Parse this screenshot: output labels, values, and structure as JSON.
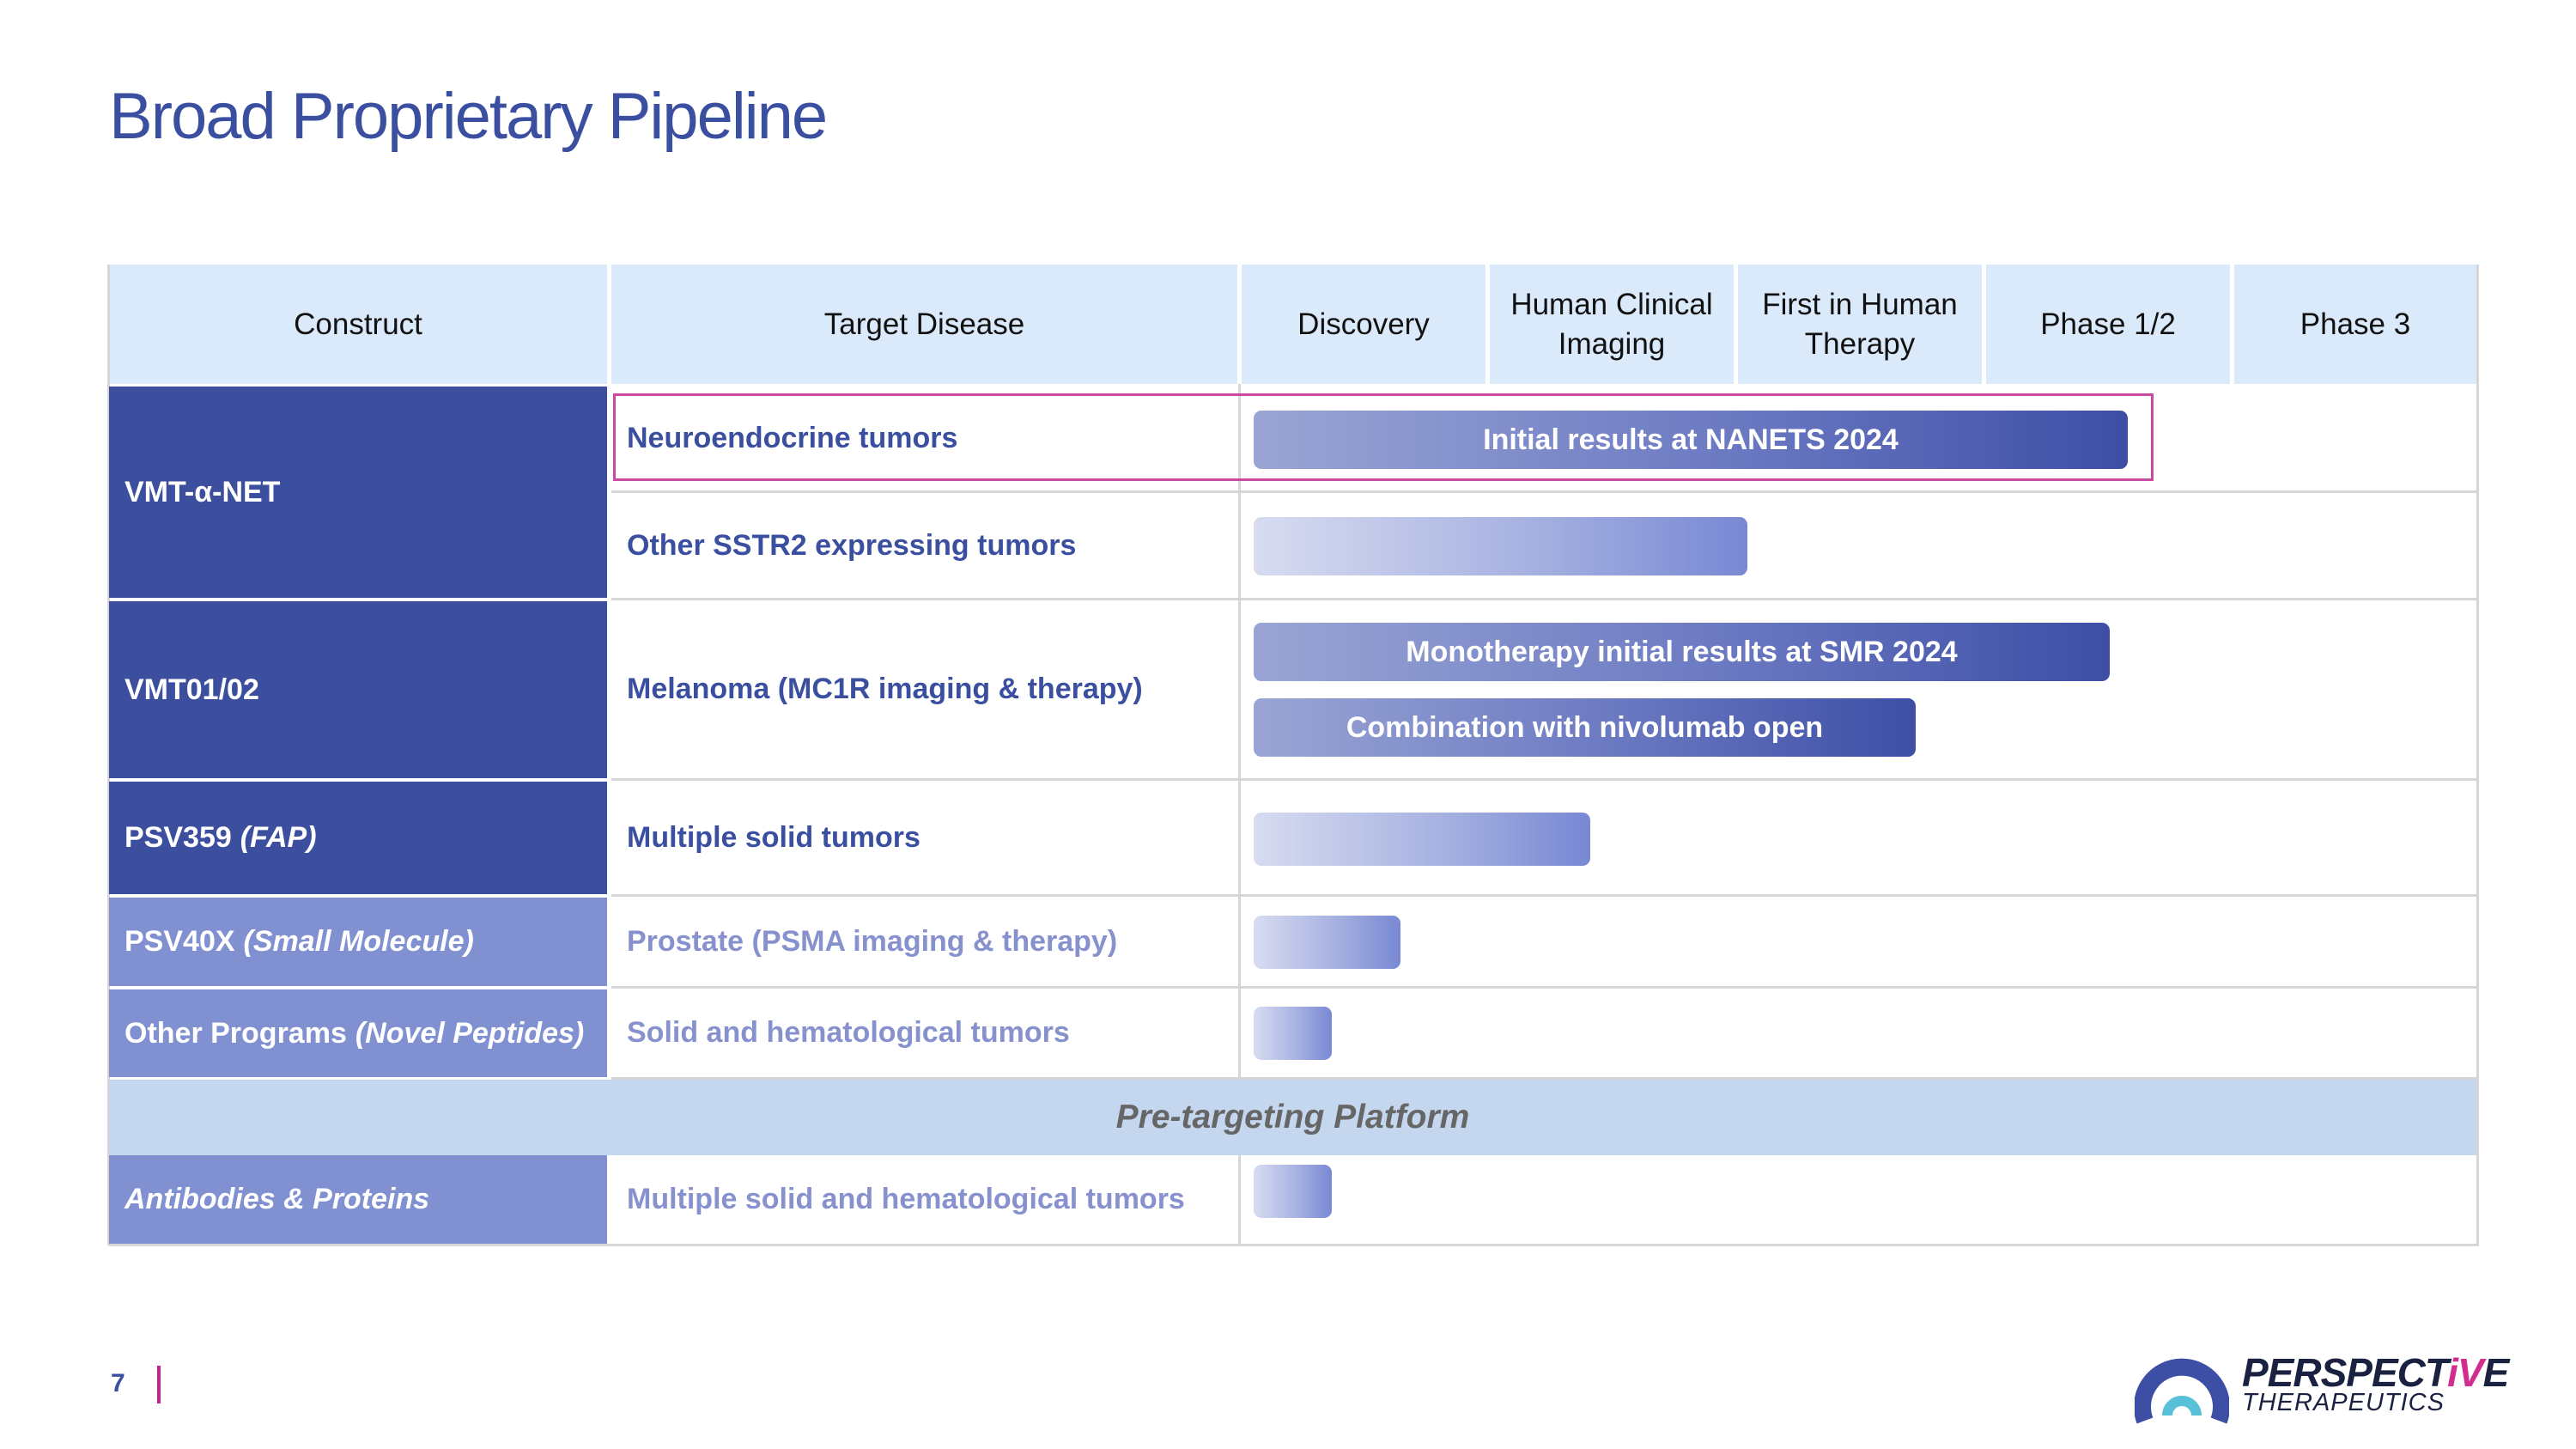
{
  "title": "Broad Proprietary Pipeline",
  "headers": {
    "construct": "Construct",
    "target_disease": "Target Disease",
    "discovery": "Discovery",
    "human_clinical_imaging": [
      "Human Clinical",
      "Imaging"
    ],
    "first_in_human": [
      "First in Human",
      "Therapy"
    ],
    "phase12": "Phase 1/2",
    "phase3": "Phase 3"
  },
  "constructs": {
    "vmt_alpha_net": "VMT-α-NET",
    "vmt01_02": "VMT01/02",
    "psv359": {
      "name": "PSV359",
      "note": "(FAP)"
    },
    "psv40x": {
      "name": "PSV40X",
      "note": "(Small Molecule)"
    },
    "other_programs": {
      "name": "Other Programs",
      "note": "(Novel Peptides)"
    },
    "antibodies": "Antibodies & Proteins"
  },
  "diseases": {
    "neuroendocrine": "Neuroendocrine tumors",
    "sstr2": "Other SSTR2 expressing tumors",
    "melanoma": "Melanoma (MC1R imaging & therapy)",
    "multiple_solid": "Multiple solid tumors",
    "prostate": "Prostate (PSMA imaging & therapy)",
    "solid_heme": "Solid and hematological tumors",
    "multiple_solid_heme": "Multiple solid and hematological tumors"
  },
  "bars": {
    "nanets": "Initial results at NANETS 2024",
    "monotherapy": "Monotherapy initial results at SMR 2024",
    "combination": "Combination with nivolumab open"
  },
  "pretargeting": "Pre-targeting Platform",
  "page_number": "7",
  "logo": {
    "name_part1": "PERSPECT",
    "name_accent": "iV",
    "name_part2": "E",
    "subtitle": "THERAPEUTICS"
  },
  "colors": {
    "brand_blue": "#3b4fa0",
    "light_blue": "#8090d0",
    "header_bg": "#dbeafb",
    "pretarget_bg": "#c5d7ee",
    "highlight": "#c94aa0"
  }
}
